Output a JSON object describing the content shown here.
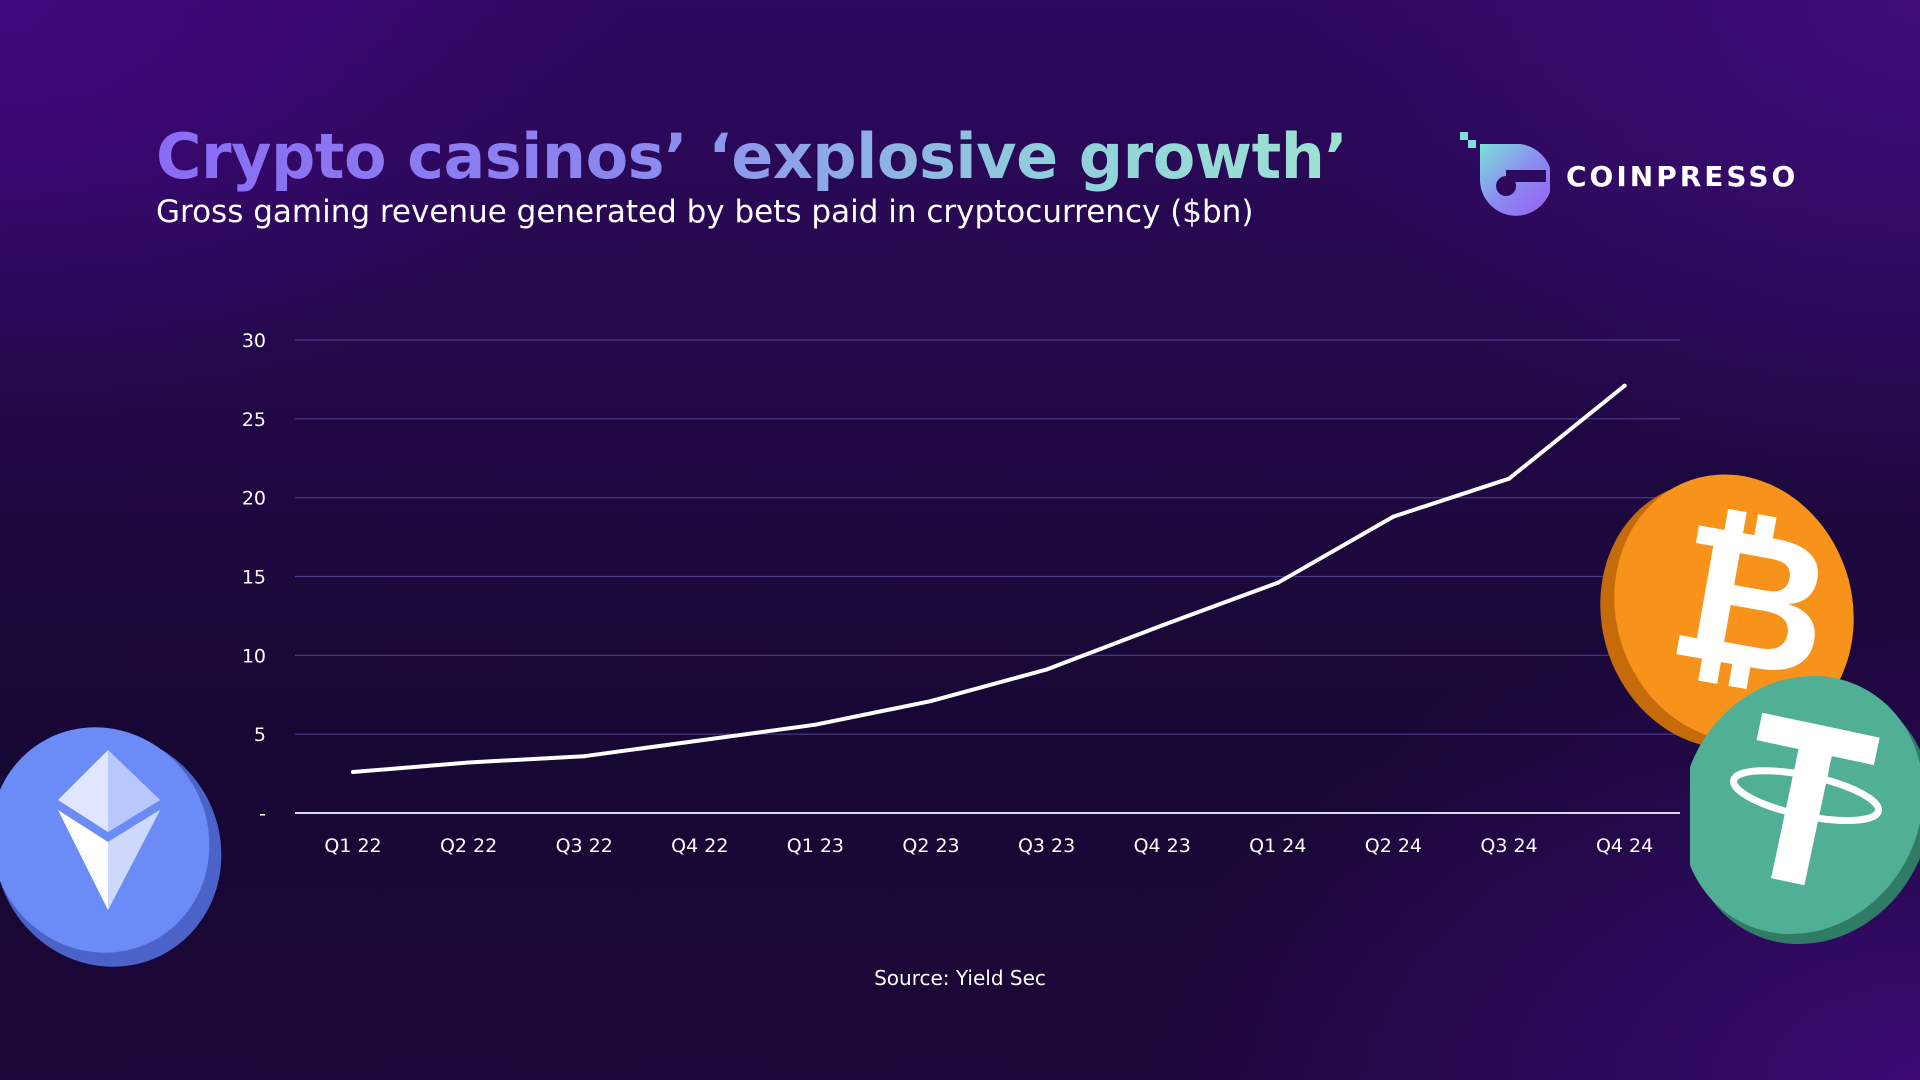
{
  "title": "Crypto casinos’ ‘explosive growth’",
  "subtitle": "Gross gaming revenue generated by bets paid in cryptocurrency ($bn)",
  "brand": {
    "name": "COINPRESSO"
  },
  "source": "Source: Yield Sec",
  "decorations": {
    "left_coin": "ethereum-coin-icon",
    "right_top_coin": "bitcoin-coin-icon",
    "right_bottom_coin": "tether-coin-icon"
  },
  "colors": {
    "line": "#ffffff",
    "grid": "#4a3a8a",
    "axis": "#d8d8e8",
    "ethereum": "#6b8cf7",
    "bitcoin": "#f7931a",
    "tether": "#50af95"
  },
  "chart_data": {
    "type": "line",
    "categories": [
      "Q1 22",
      "Q2 22",
      "Q3 22",
      "Q4 22",
      "Q1 23",
      "Q2 23",
      "Q3 23",
      "Q4 23",
      "Q1 24",
      "Q2 24",
      "Q3 24",
      "Q4 24"
    ],
    "series": [
      {
        "values": [
          2.6,
          3.2,
          3.6,
          4.6,
          5.6,
          7.1,
          9.1,
          11.9,
          14.6,
          18.8,
          21.2,
          27.1
        ]
      }
    ],
    "y_ticks": [
      "-",
      "5",
      "10",
      "15",
      "20",
      "25",
      "30"
    ],
    "ylim": [
      0,
      30
    ],
    "grid": true,
    "legend": "none"
  }
}
